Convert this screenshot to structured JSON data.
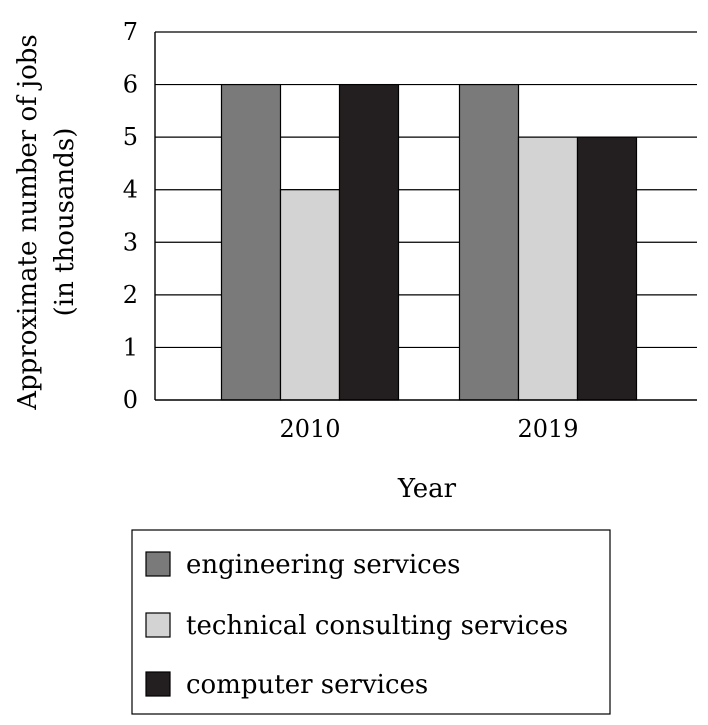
{
  "chart_data": {
    "type": "bar",
    "title": "",
    "xlabel": "Year",
    "ylabel": [
      "Approximate number of jobs",
      "(in thousands)"
    ],
    "categories": [
      "2010",
      "2019"
    ],
    "series": [
      {
        "name": "engineering services",
        "values": [
          6,
          6
        ],
        "color": "#7a7a7a"
      },
      {
        "name": "technical consulting services",
        "values": [
          4,
          5
        ],
        "color": "#d3d3d3"
      },
      {
        "name": "computer services",
        "values": [
          6,
          5
        ],
        "color": "#231f20"
      }
    ],
    "ylim": [
      0,
      7
    ],
    "yticks": [
      0,
      1,
      2,
      3,
      4,
      5,
      6,
      7
    ],
    "grid": true,
    "legend_position": "bottom"
  }
}
